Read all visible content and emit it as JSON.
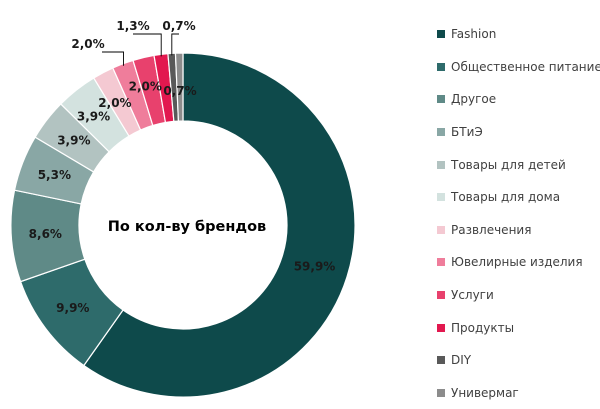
{
  "chart_data": {
    "type": "donut",
    "center_label": "По кол-ву брендов",
    "categories": [
      "Fashion",
      "Общественное питание",
      "Другое",
      "БТиЭ",
      "Товары для детей",
      "Товары для дома",
      "Развлечения",
      "Ювелирные изделия",
      "Услуги",
      "Продукты",
      "DIY",
      "Универмаг"
    ],
    "values": [
      59.9,
      9.9,
      8.6,
      5.3,
      3.9,
      3.9,
      2.0,
      2.0,
      2.0,
      1.3,
      0.7,
      0.7
    ],
    "value_labels": [
      "59,9%",
      "9,9%",
      "8,6%",
      "5,3%",
      "3,9%",
      "3,9%",
      "2,0%",
      "2,0%",
      "2,0%",
      "1,3%",
      "0,7%",
      "0,7%"
    ],
    "colors": [
      "#0e4a4b",
      "#2e6b6b",
      "#5f8a87",
      "#89a7a5",
      "#b2c3c1",
      "#d3e2df",
      "#f4c9d2",
      "#ef7d9b",
      "#e8416d",
      "#e2184f",
      "#595959",
      "#8c8c8c"
    ],
    "legend_position": "right"
  }
}
